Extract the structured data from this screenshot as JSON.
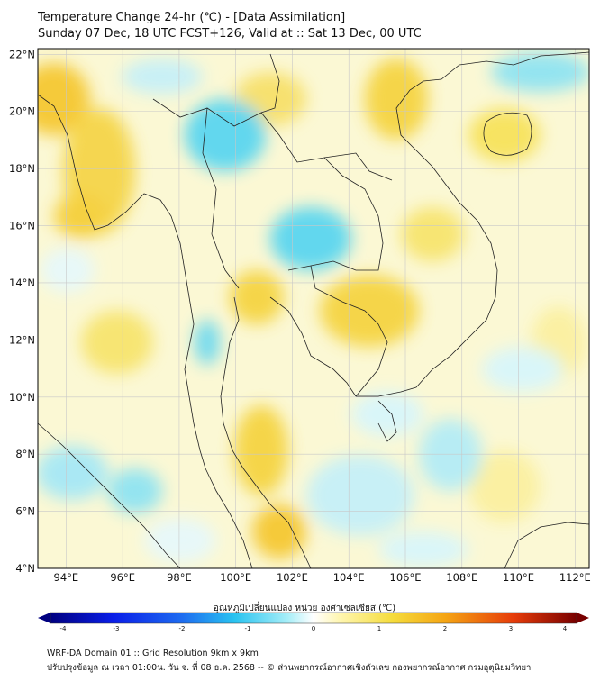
{
  "header": {
    "title_line1": "Temperature Change 24-hr (℃) - [Data Assimilation]",
    "title_line2": "Sunday 07 Dec, 18 UTC FCST+126, Valid at :: Sat 13 Dec, 00 UTC"
  },
  "map": {
    "lat_labels": [
      "22°N",
      "20°N",
      "18°N",
      "16°N",
      "14°N",
      "12°N",
      "10°N",
      "8°N",
      "6°N",
      "4°N"
    ],
    "lat_values": [
      22,
      20,
      18,
      16,
      14,
      12,
      10,
      8,
      6,
      4
    ],
    "lon_labels": [
      "94°E",
      "96°E",
      "98°E",
      "100°E",
      "102°E",
      "104°E",
      "106°E",
      "108°E",
      "110°E",
      "112°E"
    ],
    "lon_values": [
      94,
      96,
      98,
      100,
      102,
      104,
      106,
      108,
      110,
      112
    ],
    "lon_range": [
      93,
      112.5
    ],
    "lat_range": [
      4,
      22.2
    ]
  },
  "colorbar": {
    "title": "อุณหภูมิเปลี่ยนแปลง หน่วย องศาเซลเซียส (℃)",
    "ticks": [
      "-4",
      "-3",
      "-2",
      "-1",
      "0",
      "1",
      "2",
      "3",
      "4"
    ],
    "tick_values": [
      -4,
      -3,
      -2,
      -1,
      0,
      1,
      2,
      3,
      4
    ],
    "range": [
      -4,
      4
    ]
  },
  "footer": {
    "line1": "WRF-DA Domain 01 :: Grid Resolution 9km x 9km",
    "line2": "ปรับปรุงข้อมูล ณ เวลา 01:00น. วัน จ. ที่ 08 ธ.ค. 2568 -- © ส่วนพยากรณ์อากาศเชิงตัวเลข กองพยากรณ์อากาศ กรมอุตุนิยมวิทยา"
  }
}
